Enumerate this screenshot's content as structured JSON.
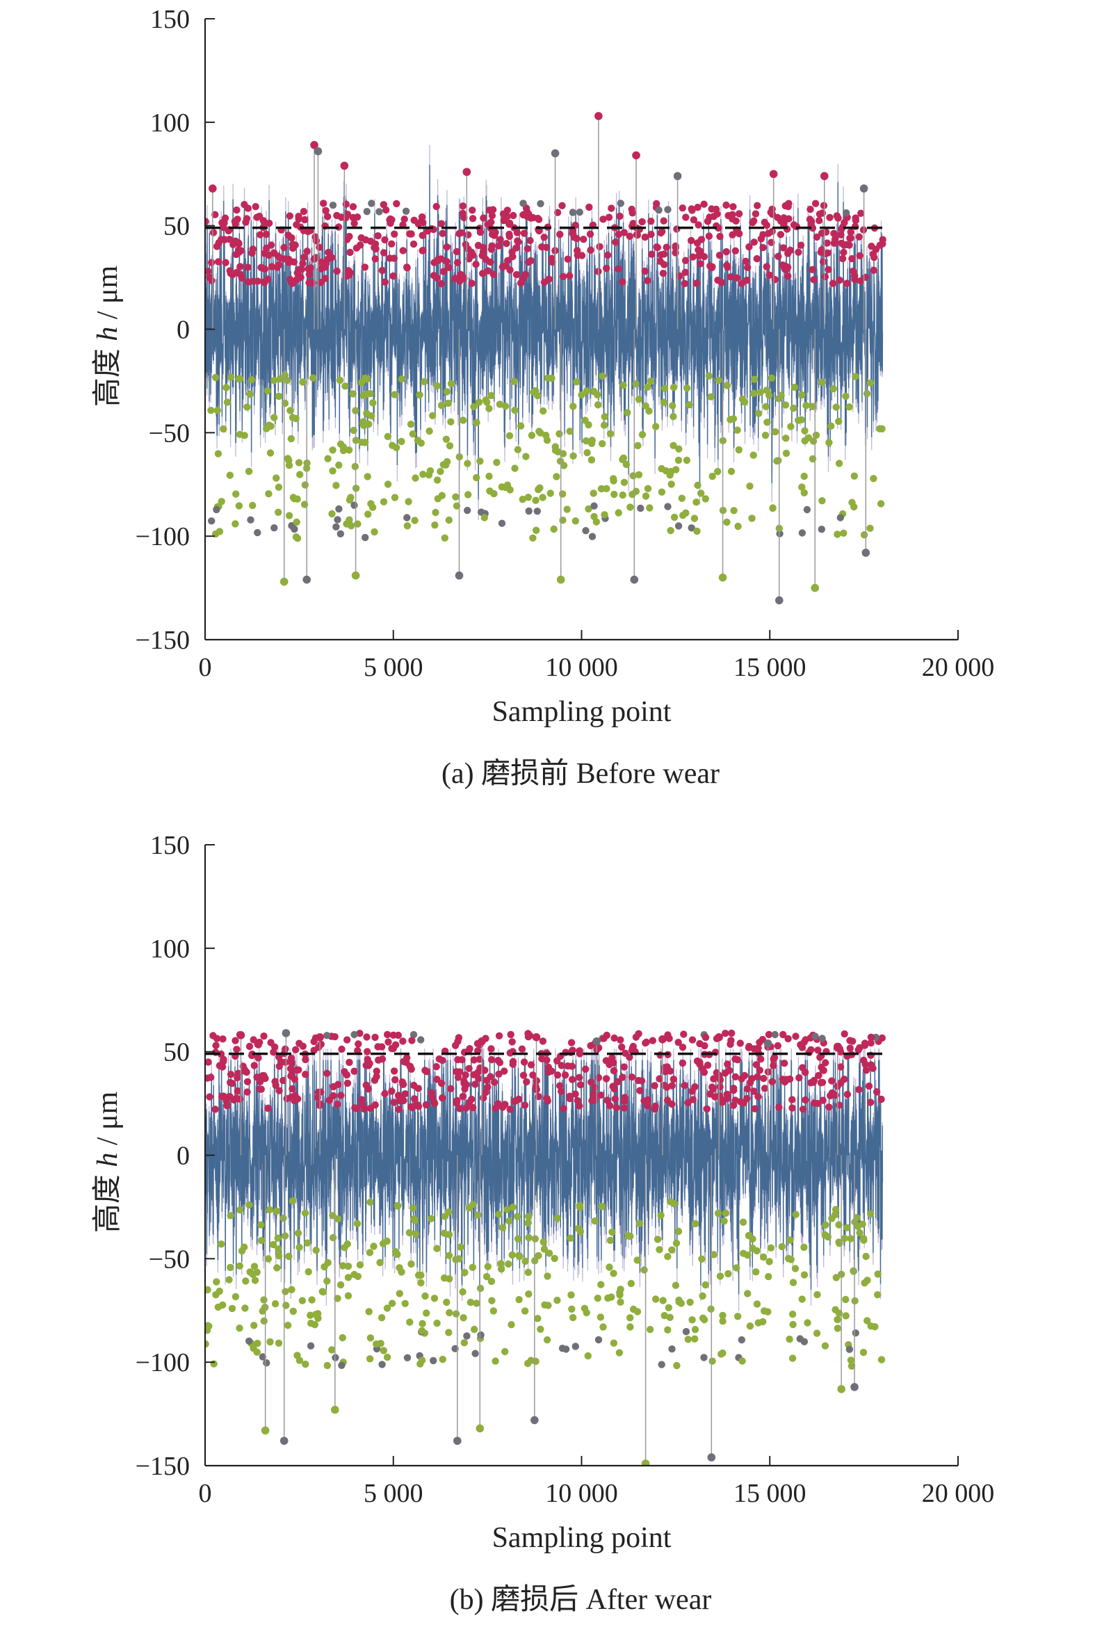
{
  "chart_data": [
    {
      "type": "scatter",
      "caption": "(a) 磨损前 Before wear",
      "xlabel": "Sampling point",
      "ylabel_prefix": "高度 ",
      "ylabel_var": "h",
      "ylabel_unit": " / μm",
      "xlim": [
        0,
        20000
      ],
      "ylim": [
        -150,
        150
      ],
      "xticks": [
        0,
        5000,
        10000,
        15000,
        20000
      ],
      "xtick_labels": [
        "0",
        "5 000",
        "10 000",
        "15 000",
        "20 000"
      ],
      "yticks": [
        -150,
        -100,
        -50,
        0,
        50,
        100,
        150
      ],
      "ytick_labels": [
        "−150",
        "−100",
        "−50",
        "0",
        "50",
        "100",
        "150"
      ],
      "threshold": 49,
      "sample_count": 18000,
      "colors": {
        "profile": "#2e5a86",
        "profile_light": "#8a7fc0",
        "peak": "#c0285a",
        "valley": "#8fae3c",
        "outlier": "#6f6f78",
        "threshold": "#111111"
      },
      "profile_range_approx": [
        -140,
        103
      ],
      "highlighted_peaks": [
        {
          "x": 2900,
          "y": 89
        },
        {
          "x": 3000,
          "y": 86
        },
        {
          "x": 3700,
          "y": 79
        },
        {
          "x": 6950,
          "y": 76
        },
        {
          "x": 9300,
          "y": 85
        },
        {
          "x": 10450,
          "y": 103
        },
        {
          "x": 11450,
          "y": 84
        },
        {
          "x": 12550,
          "y": 74
        },
        {
          "x": 15100,
          "y": 75
        },
        {
          "x": 16450,
          "y": 74
        },
        {
          "x": 17500,
          "y": 68
        },
        {
          "x": 200,
          "y": 68
        }
      ],
      "highlighted_valleys": [
        {
          "x": 2100,
          "y": -122
        },
        {
          "x": 2700,
          "y": -121
        },
        {
          "x": 4000,
          "y": -119
        },
        {
          "x": 6750,
          "y": -119
        },
        {
          "x": 9450,
          "y": -121
        },
        {
          "x": 11400,
          "y": -121
        },
        {
          "x": 13750,
          "y": -120
        },
        {
          "x": 15250,
          "y": -131
        },
        {
          "x": 16200,
          "y": -125
        },
        {
          "x": 17550,
          "y": -108
        }
      ]
    },
    {
      "type": "scatter",
      "caption": "(b) 磨损后 After wear",
      "xlabel": "Sampling point",
      "ylabel_prefix": "高度 ",
      "ylabel_var": "h",
      "ylabel_unit": " / μm",
      "xlim": [
        0,
        20000
      ],
      "ylim": [
        -150,
        150
      ],
      "xticks": [
        0,
        5000,
        10000,
        15000,
        20000
      ],
      "xtick_labels": [
        "0",
        "5 000",
        "10 000",
        "15 000",
        "20 000"
      ],
      "yticks": [
        -150,
        -100,
        -50,
        0,
        50,
        100,
        150
      ],
      "ytick_labels": [
        "−150",
        "−100",
        "−50",
        "0",
        "50",
        "100",
        "150"
      ],
      "threshold": 49,
      "sample_count": 18000,
      "colors": {
        "profile": "#2e5a86",
        "profile_light": "#8a7fc0",
        "peak": "#c0285a",
        "valley": "#8fae3c",
        "outlier": "#6f6f78",
        "threshold": "#111111"
      },
      "profile_range_approx": [
        -150,
        59
      ],
      "highlighted_peaks": [
        {
          "x": 950,
          "y": 58
        },
        {
          "x": 2150,
          "y": 59
        },
        {
          "x": 3050,
          "y": 57
        },
        {
          "x": 8800,
          "y": 57
        },
        {
          "x": 10400,
          "y": 55
        },
        {
          "x": 12150,
          "y": 56
        },
        {
          "x": 13650,
          "y": 57
        },
        {
          "x": 14950,
          "y": 54
        },
        {
          "x": 16800,
          "y": 52
        },
        {
          "x": 7350,
          "y": 55
        }
      ],
      "highlighted_valleys": [
        {
          "x": 1600,
          "y": -133
        },
        {
          "x": 2100,
          "y": -138
        },
        {
          "x": 3450,
          "y": -123
        },
        {
          "x": 6700,
          "y": -138
        },
        {
          "x": 7300,
          "y": -132
        },
        {
          "x": 8750,
          "y": -128
        },
        {
          "x": 11700,
          "y": -149
        },
        {
          "x": 13450,
          "y": -146
        },
        {
          "x": 16900,
          "y": -113
        },
        {
          "x": 17250,
          "y": -112
        }
      ]
    }
  ]
}
